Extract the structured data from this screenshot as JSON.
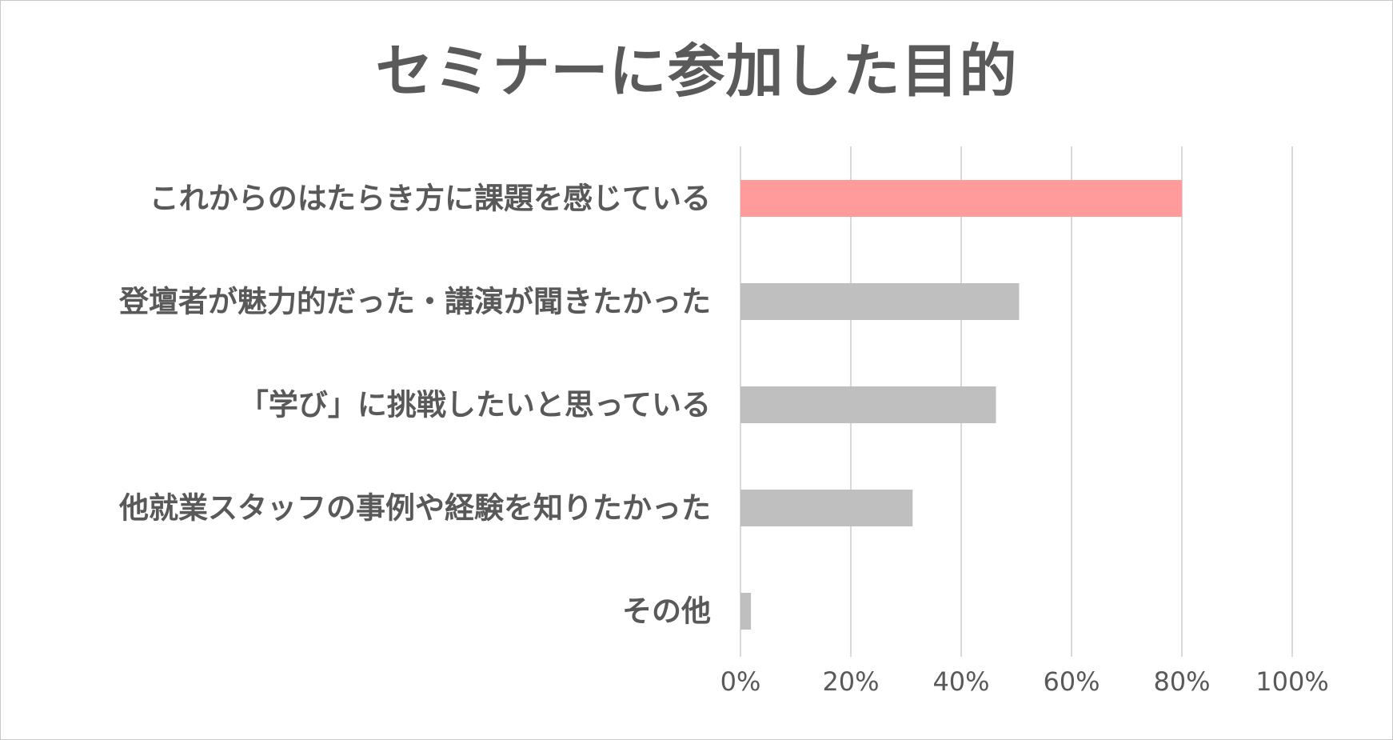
{
  "chart_data": {
    "type": "bar",
    "orientation": "horizontal",
    "title": "セミナーに参加した目的",
    "categories": [
      "これからのはたらき方に課題を感じている",
      "登壇者が魅力的だった・講演が聞きたかった",
      "「学び」に挑戦したいと思っている",
      "他就業スタッフの事例や経験を知りたかった",
      "その他"
    ],
    "values": [
      80,
      50.5,
      46.3,
      31.2,
      1.9
    ],
    "xlim": [
      0,
      100
    ],
    "xticks": [
      "0%",
      "20%",
      "40%",
      "60%",
      "80%",
      "100%"
    ],
    "xticks_values": [
      0,
      20,
      40,
      60,
      80,
      100
    ],
    "grid": true,
    "legend": "none",
    "colors": {
      "highlight": "#FF9B9B",
      "default": "#BFBFBF",
      "grid": "#D9D9D9",
      "text": "#595959"
    },
    "highlight_index": 0
  }
}
